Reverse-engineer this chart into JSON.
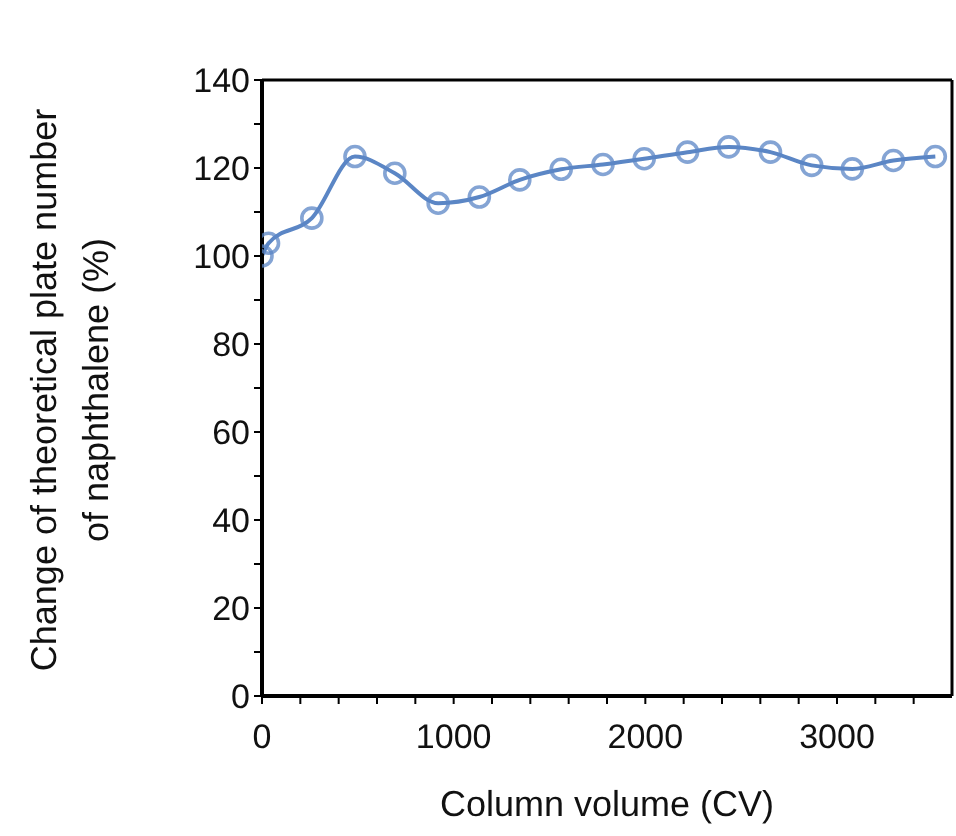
{
  "chart_data": {
    "type": "line",
    "xlabel": "Column volume (CV)",
    "ylabel": "Change of theoretical plate number\nof naphthalene (%)",
    "x": [
      0,
      34,
      260,
      485,
      693,
      919,
      1134,
      1345,
      1561,
      1779,
      1994,
      2220,
      2435,
      2653,
      2868,
      3080,
      3294,
      3513
    ],
    "series": [
      {
        "color": "#5b86c5",
        "values": [
          100,
          102.9,
          108.6,
          122.6,
          118.8,
          112,
          113.4,
          117.3,
          119.7,
          120.8,
          122.1,
          123.6,
          124.8,
          123.6,
          120.6,
          119.8,
          121.7,
          122.6
        ]
      }
    ],
    "xlim": [
      0,
      3600
    ],
    "xticks": [
      0,
      {
        "value": 200,
        "label": null
      },
      {
        "value": 400,
        "label": null
      },
      {
        "value": 600,
        "label": null
      },
      {
        "value": 800,
        "label": null
      },
      1000,
      {
        "value": 1200,
        "label": null
      },
      {
        "value": 1400,
        "label": null
      },
      {
        "value": 1600,
        "label": null
      },
      {
        "value": 1800,
        "label": null
      },
      2000,
      {
        "value": 2200,
        "label": null
      },
      {
        "value": 2400,
        "label": null
      },
      {
        "value": 2600,
        "label": null
      },
      {
        "value": 2800,
        "label": null
      },
      3000,
      {
        "value": 3200,
        "label": null
      },
      {
        "value": 3400,
        "label": null
      }
    ],
    "ylim": [
      0,
      140
    ],
    "yticks": [
      0,
      {
        "value": 10,
        "label": null
      },
      20,
      {
        "value": 30,
        "label": null
      },
      40,
      {
        "value": 50,
        "label": null
      },
      60,
      {
        "value": 70,
        "label": null
      },
      80,
      {
        "value": 90,
        "label": null
      },
      100,
      {
        "value": 110,
        "label": null
      },
      120,
      {
        "value": 130,
        "label": null
      },
      140
    ],
    "marker": "circle",
    "line_style": "solid",
    "grid": false,
    "legend": false
  }
}
